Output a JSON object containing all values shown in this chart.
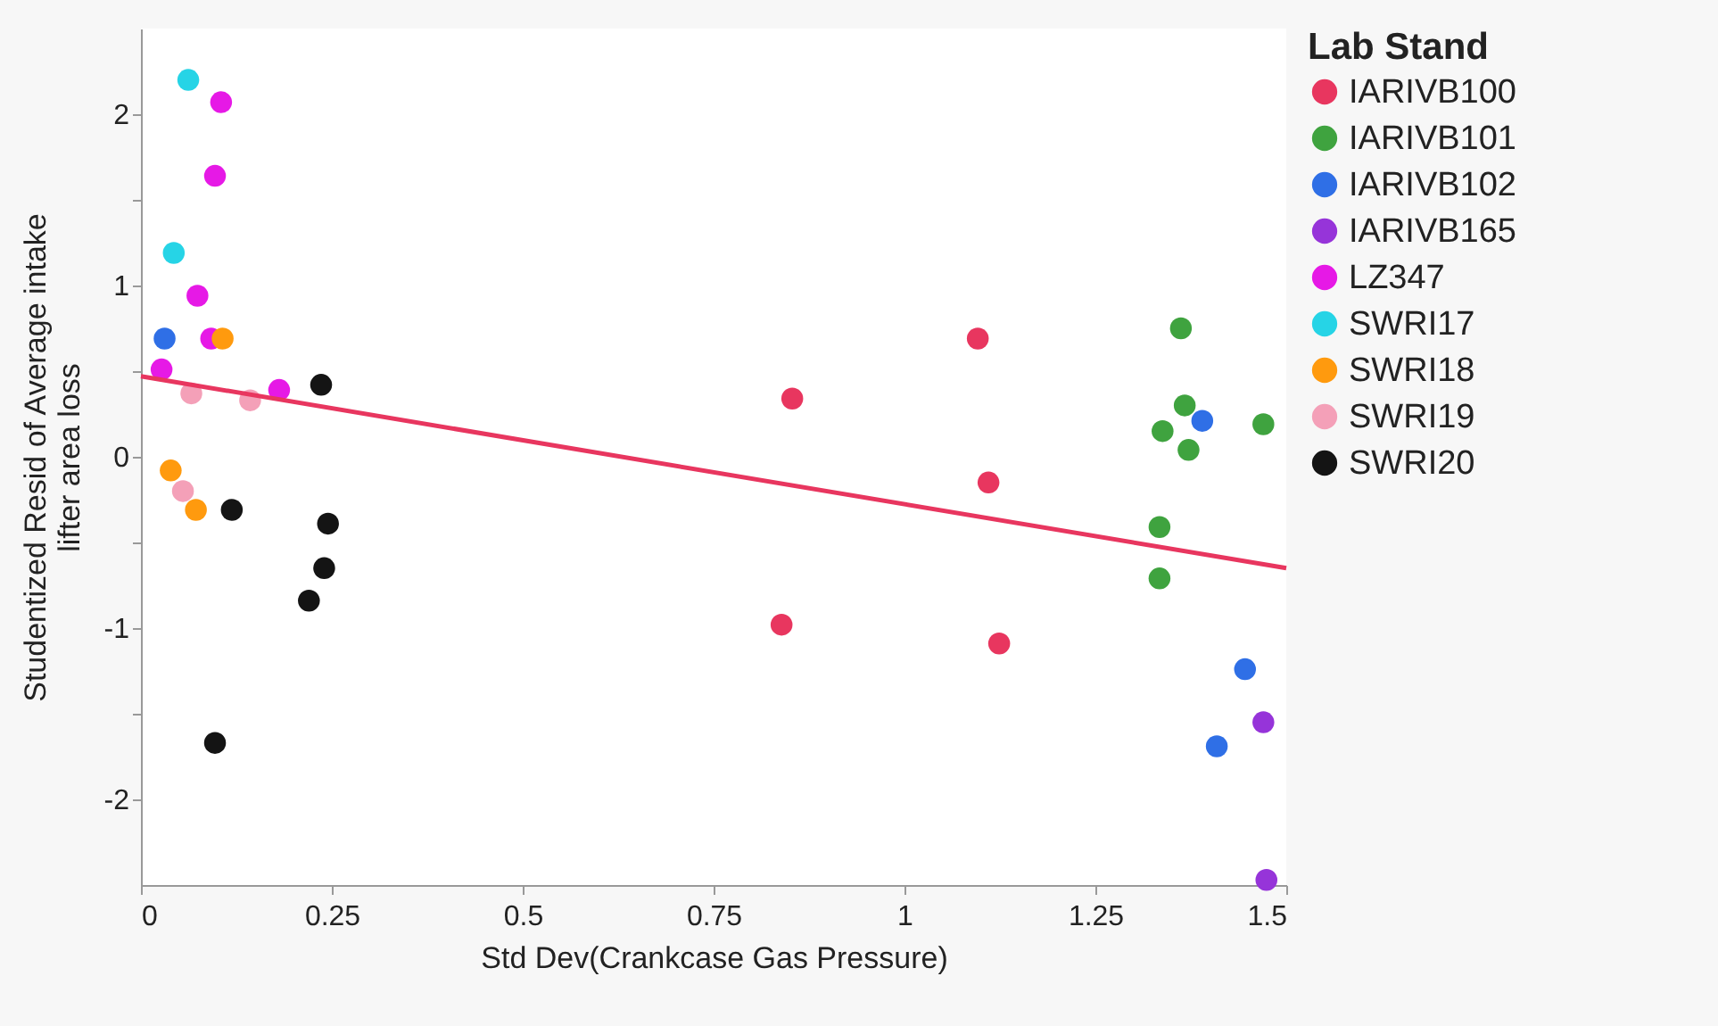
{
  "chart_data": {
    "type": "scatter",
    "xlabel": "Std Dev(Crankcase Gas Pressure)",
    "ylabel": "Studentized Resid of Average intake lifter area loss",
    "legend_title": "Lab Stand",
    "legend": "right",
    "marker": "circle",
    "grid": false,
    "xlim": [
      0,
      1.5
    ],
    "xticks": [
      0,
      0.25,
      0.5,
      0.75,
      1,
      1.25,
      1.5
    ],
    "ylim": [
      -2.5,
      2.5
    ],
    "yticks": [
      -2,
      {
        "value": -1.5,
        "label": null
      },
      -1,
      {
        "value": -0.5,
        "label": null
      },
      0,
      {
        "value": 0.5,
        "label": null
      },
      1,
      {
        "value": 1.5,
        "label": null
      },
      2
    ],
    "series": [
      {
        "name": "IARIVB100",
        "color": "#e8365f",
        "x": [
          1.096,
          0.853,
          1.11,
          0.839,
          1.124
        ],
        "values": [
          0.69,
          0.34,
          -0.15,
          -0.98,
          -1.09
        ]
      },
      {
        "name": "IARIVB101",
        "color": "#3fa33f",
        "x": [
          1.362,
          1.367,
          1.338,
          1.372,
          1.47,
          1.334,
          1.334
        ],
        "values": [
          0.75,
          0.3,
          0.15,
          0.04,
          0.19,
          -0.41,
          -0.71
        ]
      },
      {
        "name": "IARIVB102",
        "color": "#2f6fe6",
        "x": [
          1.39,
          1.446,
          1.409,
          0.031
        ],
        "values": [
          0.21,
          -1.24,
          -1.69,
          0.69
        ]
      },
      {
        "name": "IARIVB165",
        "color": "#9634d9",
        "x": [
          1.47,
          1.474
        ],
        "values": [
          -1.55,
          -2.47
        ]
      },
      {
        "name": "LZ347",
        "color": "#e619e6",
        "x": [
          0.105,
          0.097,
          0.074,
          0.092,
          0.027,
          0.181
        ],
        "values": [
          2.07,
          1.64,
          0.94,
          0.69,
          0.51,
          0.39
        ]
      },
      {
        "name": "SWRI17",
        "color": "#26d4e6",
        "x": [
          0.062,
          0.043
        ],
        "values": [
          2.2,
          1.19
        ]
      },
      {
        "name": "SWRI18",
        "color": "#ff9a0e",
        "x": [
          0.107,
          0.039,
          0.072
        ],
        "values": [
          0.69,
          -0.08,
          -0.31
        ]
      },
      {
        "name": "SWRI19",
        "color": "#f4a0b8",
        "x": [
          0.066,
          0.143,
          0.055
        ],
        "values": [
          0.37,
          0.33,
          -0.2
        ]
      },
      {
        "name": "SWRI20",
        "color": "#141414",
        "x": [
          0.236,
          0.119,
          0.245,
          0.24,
          0.22,
          0.097
        ],
        "values": [
          0.42,
          -0.31,
          -0.39,
          -0.65,
          -0.84,
          -1.67
        ]
      },
      {
        "type": "line",
        "marker": "none",
        "color": "#e8365f",
        "x": [
          0,
          1.5
        ],
        "values": [
          0.47,
          -0.65
        ]
      }
    ]
  }
}
